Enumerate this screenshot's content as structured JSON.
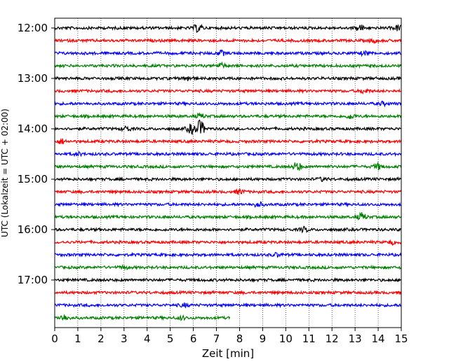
{
  "chart_data": {
    "type": "line",
    "title": "",
    "xlabel": "Zeit  [min]",
    "ylabel": "UTC (Lokalzeit = UTC + 02:00)",
    "xlim": [
      0,
      15
    ],
    "x_ticks": [
      "0",
      "1",
      "2",
      "3",
      "4",
      "5",
      "6",
      "7",
      "8",
      "9",
      "10",
      "11",
      "12",
      "13",
      "14",
      "15"
    ],
    "y_ticks": [
      "12:00",
      "13:00",
      "14:00",
      "15:00",
      "16:00",
      "17:00"
    ],
    "grid": "vertical dotted",
    "line_colors": [
      "#000000",
      "#ff0000",
      "#0000ff",
      "#008000"
    ],
    "series": [
      {
        "start": "12:00",
        "end_min": 15
      },
      {
        "start": "12:15",
        "end_min": 15
      },
      {
        "start": "12:30",
        "end_min": 15
      },
      {
        "start": "12:45",
        "end_min": 15
      },
      {
        "start": "13:00",
        "end_min": 15
      },
      {
        "start": "13:15",
        "end_min": 15
      },
      {
        "start": "13:30",
        "end_min": 15
      },
      {
        "start": "13:45",
        "end_min": 15
      },
      {
        "start": "14:00",
        "end_min": 15
      },
      {
        "start": "14:15",
        "end_min": 15
      },
      {
        "start": "14:30",
        "end_min": 15
      },
      {
        "start": "14:45",
        "end_min": 15
      },
      {
        "start": "15:00",
        "end_min": 15
      },
      {
        "start": "15:15",
        "end_min": 15
      },
      {
        "start": "15:30",
        "end_min": 15
      },
      {
        "start": "15:45",
        "end_min": 15
      },
      {
        "start": "16:00",
        "end_min": 15
      },
      {
        "start": "16:15",
        "end_min": 15
      },
      {
        "start": "16:30",
        "end_min": 15
      },
      {
        "start": "16:45",
        "end_min": 15
      },
      {
        "start": "17:00",
        "end_min": 15
      },
      {
        "start": "17:15",
        "end_min": 15
      },
      {
        "start": "17:30",
        "end_min": 15
      },
      {
        "start": "17:45",
        "end_min": 7.6
      }
    ],
    "events": [
      {
        "row": 0,
        "min": 6.2,
        "amp": 5
      },
      {
        "row": 0,
        "min": 13.2,
        "amp": 4
      },
      {
        "row": 0,
        "min": 14.9,
        "amp": 4
      },
      {
        "row": 1,
        "min": 13.8,
        "amp": 2
      },
      {
        "row": 2,
        "min": 7.2,
        "amp": 3
      },
      {
        "row": 2,
        "min": 13.4,
        "amp": 2
      },
      {
        "row": 3,
        "min": 7.2,
        "amp": 3
      },
      {
        "row": 4,
        "min": 5.8,
        "amp": 3
      },
      {
        "row": 5,
        "min": 13.4,
        "amp": 3
      },
      {
        "row": 6,
        "min": 14.2,
        "amp": 2
      },
      {
        "row": 7,
        "min": 6.3,
        "amp": 3
      },
      {
        "row": 7,
        "min": 12.8,
        "amp": 3
      },
      {
        "row": 8,
        "min": 3.1,
        "amp": 3
      },
      {
        "row": 8,
        "min": 5.9,
        "amp": 6
      },
      {
        "row": 8,
        "min": 6.3,
        "amp": 11
      },
      {
        "row": 9,
        "min": 0.3,
        "amp": 3
      },
      {
        "row": 10,
        "min": 1.0,
        "amp": 2
      },
      {
        "row": 11,
        "min": 10.5,
        "amp": 6
      },
      {
        "row": 11,
        "min": 14.0,
        "amp": 4
      },
      {
        "row": 12,
        "min": 11.6,
        "amp": 2
      },
      {
        "row": 13,
        "min": 8.0,
        "amp": 3
      },
      {
        "row": 14,
        "min": 8.8,
        "amp": 3
      },
      {
        "row": 15,
        "min": 13.3,
        "amp": 5
      },
      {
        "row": 16,
        "min": 10.8,
        "amp": 3
      },
      {
        "row": 17,
        "min": 14.6,
        "amp": 2
      },
      {
        "row": 18,
        "min": 9.6,
        "amp": 2
      },
      {
        "row": 19,
        "min": 3.0,
        "amp": 2
      },
      {
        "row": 22,
        "min": 5.6,
        "amp": 2
      },
      {
        "row": 23,
        "min": 0.4,
        "amp": 4
      },
      {
        "row": 23,
        "min": 5.5,
        "amp": 2
      }
    ]
  }
}
